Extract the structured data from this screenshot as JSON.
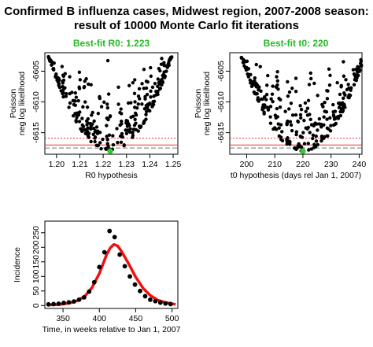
{
  "title_line1": "Confirmed B influenza cases, Midwest region, 2007-2008 season:",
  "title_line2": "result of 10000 Monte Carlo fit iterations",
  "colors": {
    "best_fit_text": "#22bb22",
    "best_point": "#33cc33",
    "fit_line": "#ee1111",
    "ref_line_red": "#ee3333",
    "ref_line_grey": "#777777"
  },
  "chart_data": [
    {
      "type": "scatter",
      "title": "Best-fit R0: 1.223",
      "xlabel": "R0 hypothesis",
      "ylabel": [
        "Poisson",
        "neg log likelihood"
      ],
      "xlim": [
        1.195,
        1.252
      ],
      "ylim": [
        -6618.5,
        -6602
      ],
      "xticks": [
        1.2,
        1.21,
        1.22,
        1.23,
        1.24,
        1.25
      ],
      "xtick_labels": [
        "1.20",
        "1.21",
        "1.22",
        "1.23",
        "1.24",
        "1.25"
      ],
      "yticks": [
        -6615,
        -6610,
        -6605
      ],
      "ytick_labels": [
        "-6615",
        "-6610",
        "-6605"
      ],
      "min_value": -6618,
      "reference_lines": [
        -6617.0,
        -6617.5,
        -6615.9
      ],
      "best_fit": {
        "x": 1.223,
        "y": -6618
      },
      "curve": {
        "center": 1.223,
        "halfwidth": 0.0265
      }
    },
    {
      "type": "scatter",
      "title": "Best-fit t0: 220",
      "xlabel": "t0 hypothesis (days rel Jan 1, 2007)",
      "ylabel": [
        "Poisson",
        "neg log likelihood"
      ],
      "xlim": [
        194,
        241
      ],
      "ylim": [
        -6618.5,
        -6602
      ],
      "xticks": [
        200,
        210,
        220,
        230,
        240
      ],
      "xtick_labels": [
        "200",
        "210",
        "220",
        "230",
        "240"
      ],
      "yticks": [
        -6615,
        -6610,
        -6605
      ],
      "ytick_labels": [
        "-6615",
        "-6610",
        "-6605"
      ],
      "min_value": -6618,
      "reference_lines": [
        -6617.0,
        -6617.5,
        -6615.9
      ],
      "best_fit": {
        "x": 220,
        "y": -6618
      },
      "curve": {
        "center": 220,
        "halfwidth": 22
      }
    },
    {
      "type": "line",
      "title": "",
      "xlabel": "Time, in weeks relative to Jan 1, 2007",
      "ylabel": "Incidence",
      "xlim": [
        325,
        508
      ],
      "ylim": [
        -10,
        290
      ],
      "xticks": [
        350,
        400,
        450,
        500
      ],
      "xtick_labels": [
        "350",
        "400",
        "450",
        "500"
      ],
      "yticks": [
        0,
        50,
        100,
        150,
        200,
        250
      ],
      "ytick_labels": [
        "0",
        "50",
        "100",
        "150",
        "200",
        "250"
      ],
      "observed": {
        "x": [
          330,
          337,
          344,
          351,
          358,
          365,
          372,
          379,
          386,
          393,
          400,
          407,
          414,
          421,
          428,
          435,
          442,
          449,
          456,
          463,
          470,
          477,
          484,
          491,
          498
        ],
        "y": [
          4,
          5,
          6,
          9,
          11,
          14,
          20,
          28,
          48,
          80,
          132,
          183,
          256,
          235,
          175,
          135,
          100,
          72,
          50,
          32,
          20,
          15,
          10,
          7,
          5
        ]
      },
      "fit": {
        "x": [
          328,
          340,
          350,
          360,
          370,
          380,
          390,
          400,
          410,
          415,
          420,
          425,
          430,
          440,
          450,
          460,
          470,
          480,
          490,
          500,
          505
        ],
        "y": [
          2,
          3,
          5,
          9,
          17,
          32,
          62,
          110,
          175,
          198,
          210,
          205,
          188,
          145,
          98,
          60,
          35,
          19,
          11,
          6,
          4
        ]
      }
    }
  ]
}
